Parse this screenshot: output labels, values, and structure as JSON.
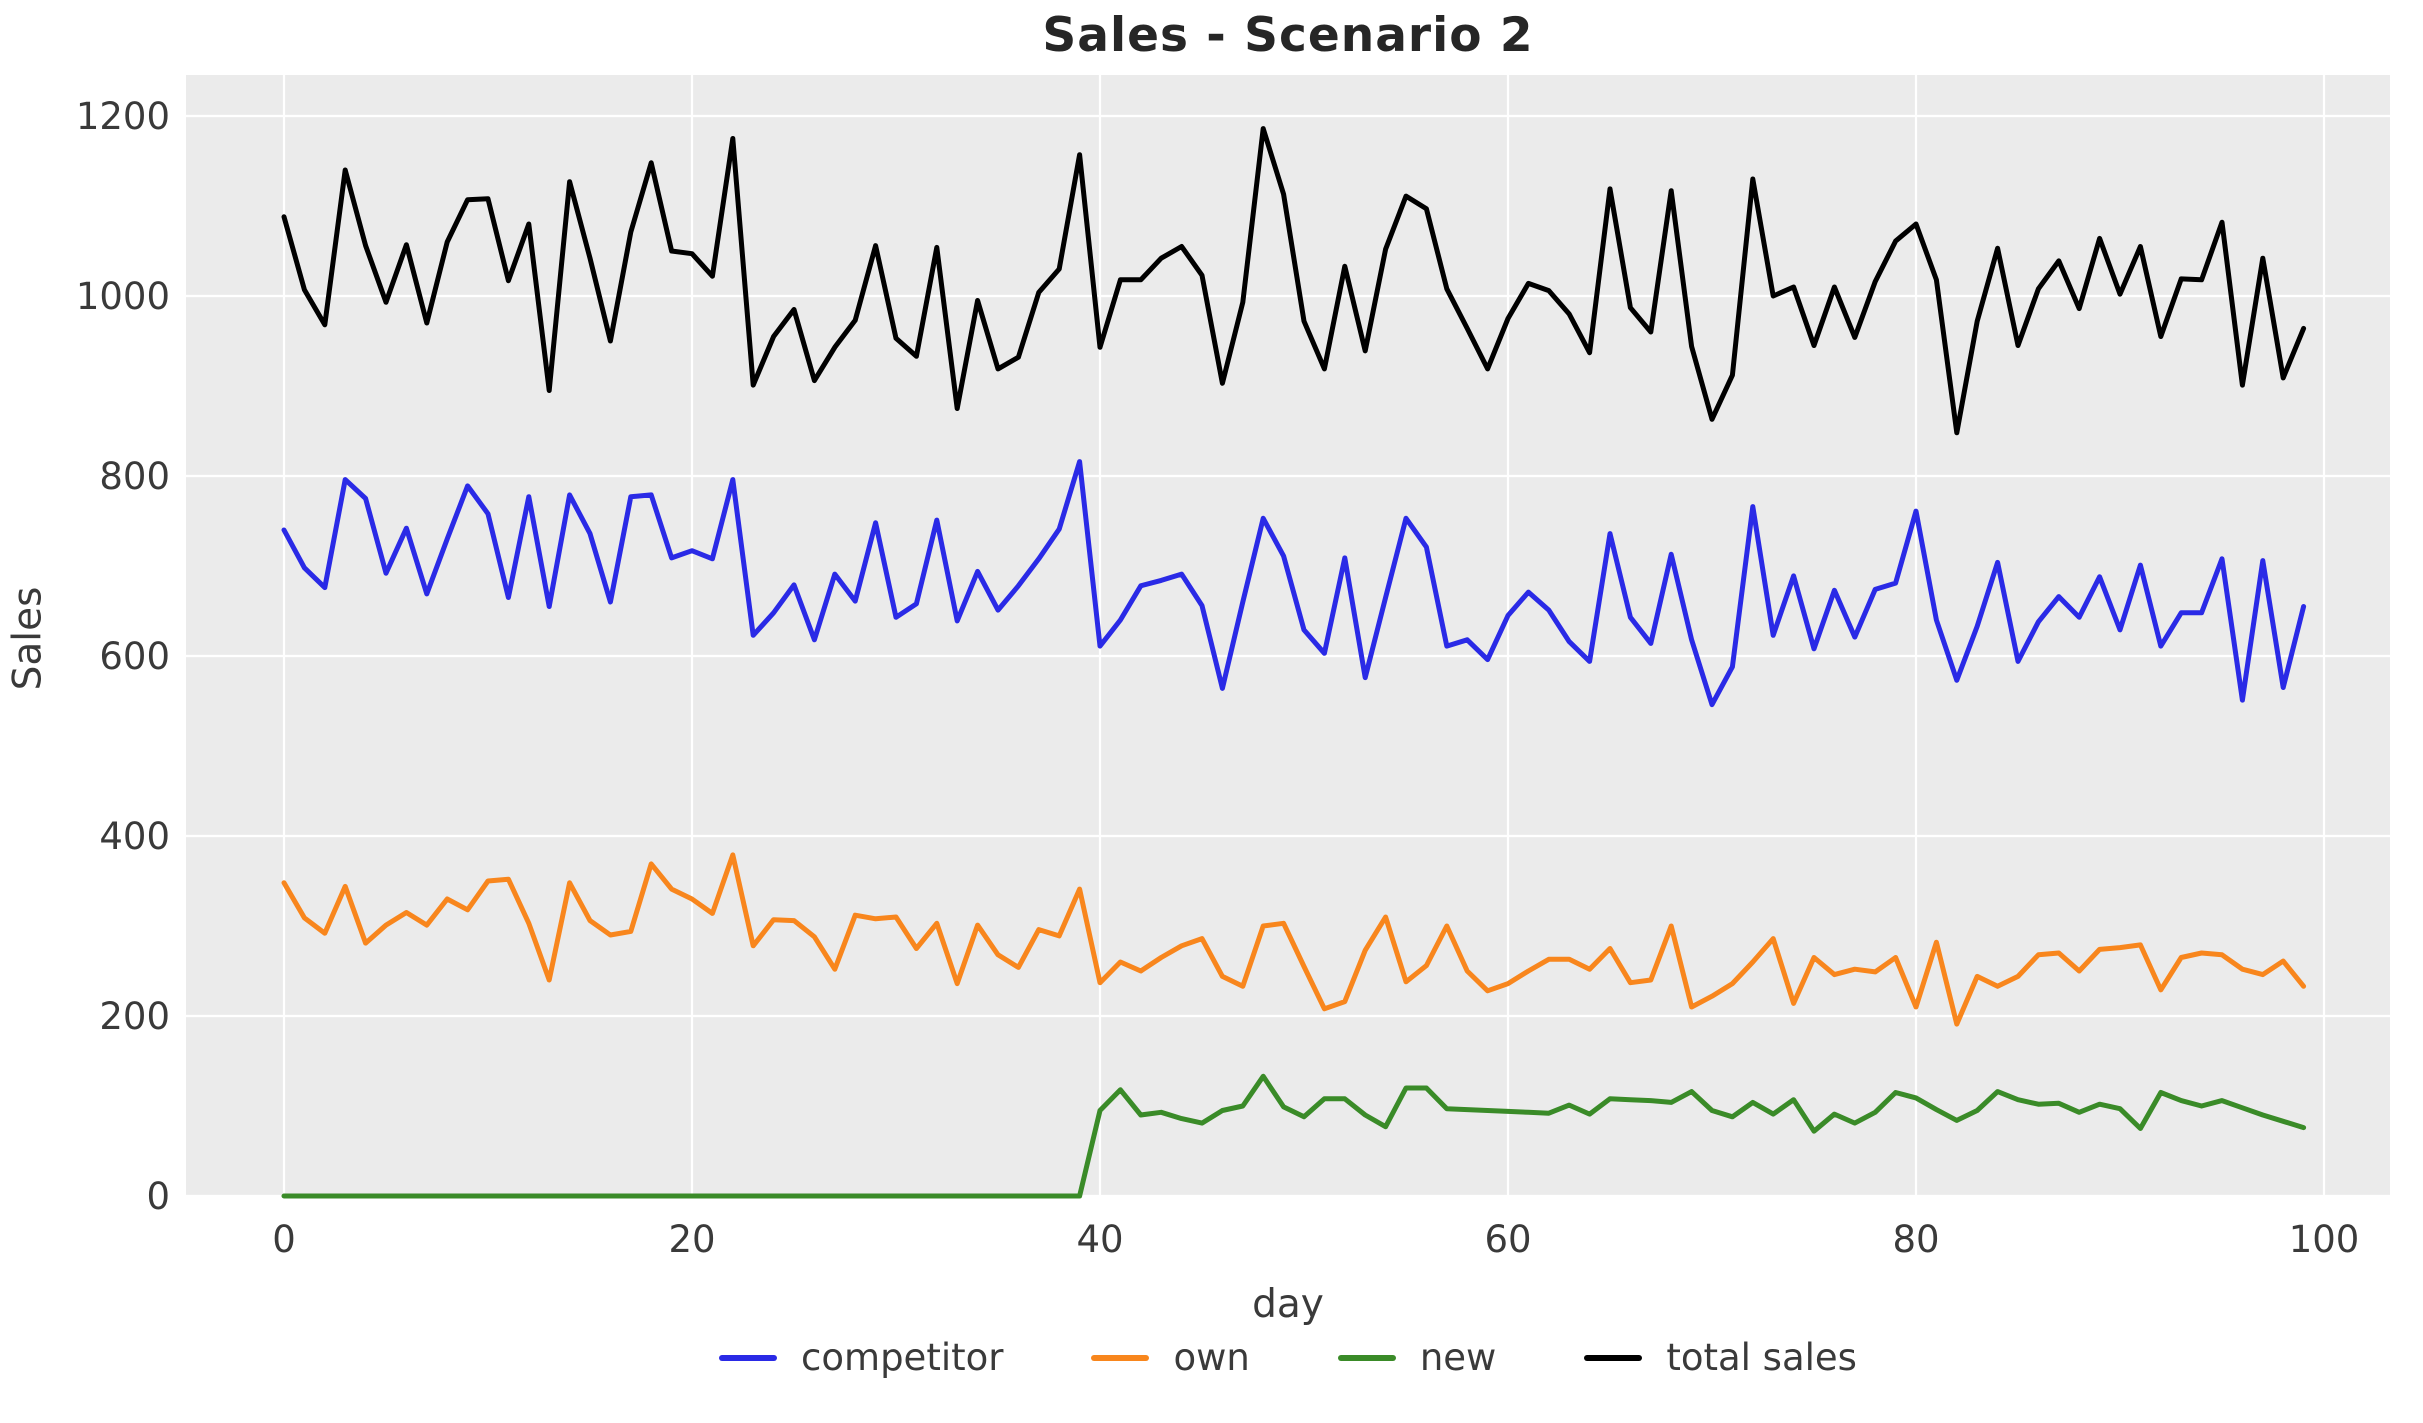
{
  "chart_data": {
    "type": "line",
    "title": "Sales - Scenario 2",
    "xlabel": "day",
    "ylabel": "Sales",
    "x_ticks": [
      0,
      20,
      40,
      60,
      80,
      100
    ],
    "y_ticks": [
      0,
      200,
      400,
      600,
      800,
      1000,
      1200
    ],
    "xlim": [
      -5,
      104.2
    ],
    "ylim": [
      0,
      1246
    ],
    "grid": true,
    "legend_position": "bottom-center",
    "plot_background": "#ebebeb",
    "grid_color": "#ffffff",
    "x_values": [
      0,
      1,
      2,
      3,
      4,
      5,
      6,
      7,
      8,
      9,
      10,
      11,
      12,
      13,
      14,
      15,
      16,
      17,
      18,
      19,
      20,
      21,
      22,
      23,
      24,
      25,
      26,
      27,
      28,
      29,
      30,
      31,
      32,
      33,
      34,
      35,
      36,
      37,
      38,
      39,
      40,
      41,
      42,
      43,
      44,
      45,
      46,
      47,
      48,
      49,
      50,
      51,
      52,
      53,
      54,
      55,
      56,
      57,
      58,
      59,
      60,
      61,
      62,
      63,
      64,
      65,
      66,
      67,
      68,
      69,
      70,
      71,
      72,
      73,
      74,
      75,
      76,
      77,
      78,
      79,
      80,
      81,
      82,
      83,
      84,
      85,
      86,
      87,
      88,
      89,
      90,
      91,
      92,
      93,
      94,
      95,
      96,
      97,
      98,
      99
    ],
    "series": [
      {
        "name": "competitor",
        "color": "#2a2ae6",
        "values": [
          740,
          698,
          676,
          796,
          775,
          692,
          742,
          669,
          730,
          789,
          758,
          665,
          777,
          655,
          779,
          736,
          660,
          777,
          779,
          709,
          717,
          708,
          796,
          623,
          648,
          679,
          618,
          691,
          661,
          748,
          643,
          658,
          751,
          639,
          694,
          651,
          678,
          708,
          741,
          816,
          611,
          640,
          678,
          684,
          691,
          656,
          564,
          660,
          753,
          711,
          629,
          603,
          709,
          576,
          665,
          753,
          721,
          611,
          618,
          596,
          645,
          671,
          651,
          616,
          594,
          736,
          643,
          614,
          713,
          618,
          546,
          588,
          766,
          623,
          689,
          608,
          673,
          621,
          674,
          681,
          761,
          640,
          573,
          633,
          704,
          594,
          638,
          666,
          643,
          688,
          629,
          701,
          611,
          648,
          648,
          708,
          551,
          706,
          565,
          655
        ]
      },
      {
        "name": "own",
        "color": "#f8861d",
        "values": [
          348,
          309,
          292,
          344,
          281,
          301,
          315,
          301,
          330,
          318,
          350,
          352,
          303,
          240,
          348,
          306,
          290,
          294,
          369,
          341,
          330,
          314,
          379,
          278,
          307,
          306,
          288,
          252,
          312,
          308,
          310,
          275,
          303,
          236,
          301,
          268,
          254,
          296,
          289,
          341,
          237,
          260,
          250,
          265,
          278,
          286,
          244,
          233,
          300,
          303,
          255,
          208,
          216,
          273,
          310,
          238,
          256,
          300,
          250,
          228,
          236,
          250,
          263,
          263,
          252,
          275,
          237,
          240,
          300,
          210,
          222,
          236,
          260,
          286,
          214,
          265,
          246,
          252,
          249,
          265,
          210,
          282,
          191,
          244,
          233,
          244,
          268,
          270,
          250,
          274,
          276,
          279,
          229,
          265,
          270,
          268,
          252,
          246,
          261,
          233
        ]
      },
      {
        "name": "new",
        "color": "#3a8b28",
        "values": [
          0,
          0,
          0,
          0,
          0,
          0,
          0,
          0,
          0,
          0,
          0,
          0,
          0,
          0,
          0,
          0,
          0,
          0,
          0,
          0,
          0,
          0,
          0,
          0,
          0,
          0,
          0,
          0,
          0,
          0,
          0,
          0,
          0,
          0,
          0,
          0,
          0,
          0,
          0,
          0,
          95,
          118,
          90,
          93,
          86,
          81,
          95,
          100,
          133,
          99,
          88,
          108,
          108,
          90,
          77,
          120,
          120,
          97,
          96,
          95,
          94,
          93,
          92,
          101,
          91,
          108,
          107,
          106,
          104,
          116,
          95,
          88,
          104,
          91,
          107,
          72,
          91,
          81,
          93,
          115,
          109,
          96,
          84,
          95,
          116,
          107,
          102,
          103,
          93,
          102,
          97,
          75,
          115,
          106,
          100,
          106,
          98,
          90,
          83,
          76
        ]
      },
      {
        "name": "total sales",
        "color": "#000000",
        "values": [
          1088,
          1007,
          968,
          1140,
          1056,
          993,
          1057,
          970,
          1060,
          1107,
          1108,
          1017,
          1080,
          895,
          1127,
          1042,
          950,
          1071,
          1148,
          1050,
          1047,
          1022,
          1175,
          901,
          955,
          985,
          906,
          943,
          973,
          1056,
          953,
          933,
          1054,
          875,
          995,
          919,
          932,
          1004,
          1030,
          1157,
          943,
          1018,
          1018,
          1042,
          1055,
          1023,
          903,
          993,
          1186,
          1113,
          972,
          919,
          1033,
          939,
          1052,
          1111,
          1097,
          1008,
          964,
          919,
          975,
          1014,
          1006,
          980,
          937,
          1119,
          987,
          960,
          1117,
          944,
          863,
          912,
          1130,
          1000,
          1010,
          945,
          1010,
          954,
          1016,
          1061,
          1080,
          1018,
          848,
          972,
          1053,
          945,
          1008,
          1039,
          986,
          1064,
          1002,
          1055,
          955,
          1019,
          1018,
          1082,
          901,
          1042,
          909,
          964
        ]
      }
    ]
  }
}
